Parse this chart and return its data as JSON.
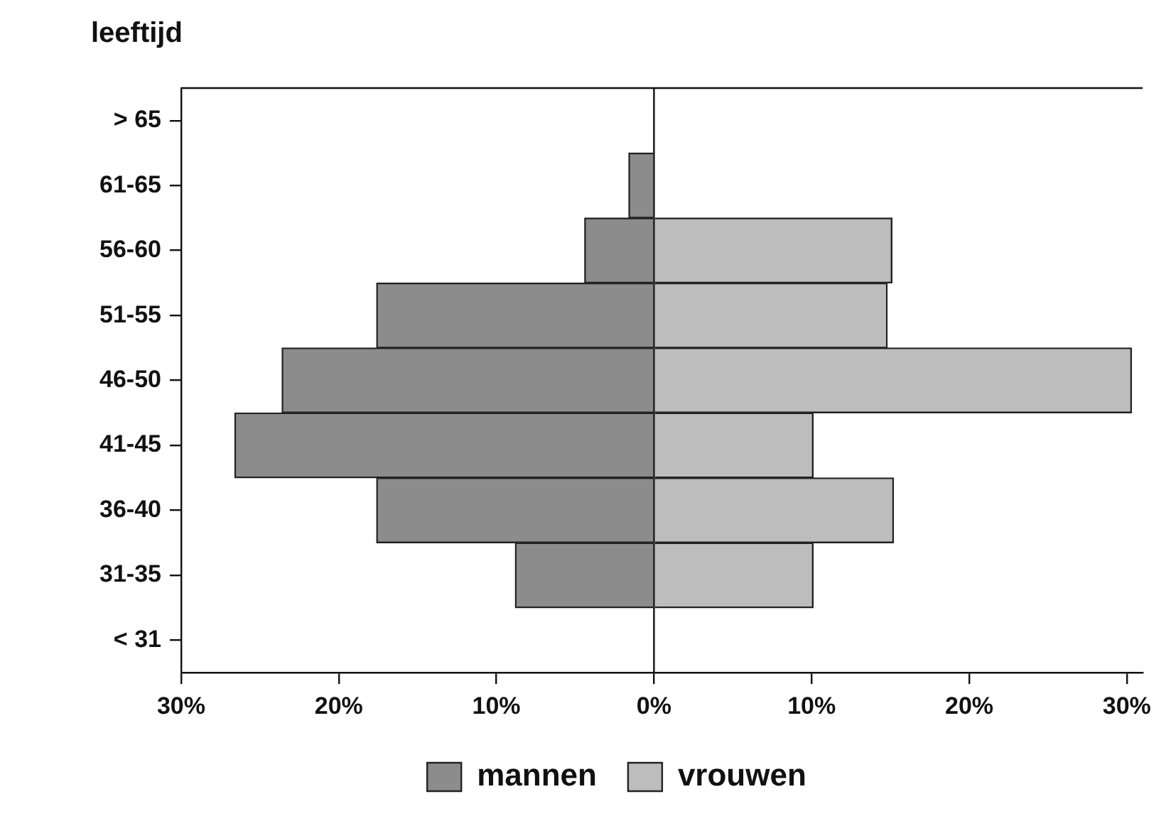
{
  "chart_data": {
    "type": "bar",
    "orientation": "horizontal",
    "stacked": true,
    "ylabel": "leeftijd",
    "categories": [
      "> 65",
      "61-65",
      "56-60",
      "51-55",
      "46-50",
      "41-45",
      "36-40",
      "31-35",
      "< 31"
    ],
    "series": [
      {
        "name": "mannen",
        "color": "#8c8c8c",
        "values": [
          null,
          -1.6,
          -4.4,
          -17.6,
          -23.6,
          -26.6,
          -17.6,
          -8.8,
          null
        ]
      },
      {
        "name": "vrouwen",
        "color": "#bdbdbd",
        "values": [
          null,
          null,
          15.1,
          14.8,
          30.3,
          10.1,
          15.2,
          10.1,
          null
        ]
      }
    ],
    "xlim": [
      -30,
      31
    ],
    "xticks": [
      {
        "value": -30,
        "label": "30%"
      },
      {
        "value": -20,
        "label": "20%"
      },
      {
        "value": -10,
        "label": "10%"
      },
      {
        "value": 0,
        "label": "0%"
      },
      {
        "value": 10,
        "label": "10%"
      },
      {
        "value": 20,
        "label": "20%"
      },
      {
        "value": 30,
        "label": "30%"
      }
    ],
    "ref_lines": [
      {
        "axis": "x",
        "value": 0
      }
    ],
    "legend": "bottom",
    "grid": false
  }
}
